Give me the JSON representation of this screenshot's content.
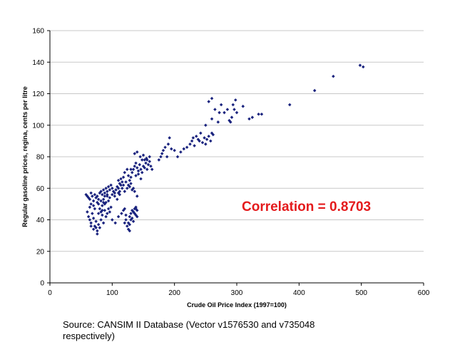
{
  "chart_data": {
    "type": "scatter",
    "title": "",
    "xlabel": "Crude Oil Price Index (1997=100)",
    "ylabel": "Regular gasoline prices, regina, cents per litre",
    "xlim": [
      0,
      600
    ],
    "ylim": [
      0,
      160
    ],
    "xticks": [
      0,
      100,
      200,
      300,
      400,
      500,
      600
    ],
    "yticks": [
      0,
      20,
      40,
      60,
      80,
      100,
      120,
      140,
      160
    ],
    "grid": "horizontal",
    "marker_color": "#1a237e",
    "annotation": "Correlation = 0.8703",
    "points": [
      [
        58,
        56
      ],
      [
        60,
        55
      ],
      [
        62,
        54
      ],
      [
        64,
        53
      ],
      [
        66,
        57
      ],
      [
        68,
        55
      ],
      [
        70,
        52
      ],
      [
        72,
        56
      ],
      [
        74,
        54
      ],
      [
        76,
        55
      ],
      [
        78,
        53
      ],
      [
        80,
        57
      ],
      [
        82,
        58
      ],
      [
        84,
        56
      ],
      [
        86,
        59
      ],
      [
        88,
        57
      ],
      [
        90,
        60
      ],
      [
        92,
        58
      ],
      [
        94,
        61
      ],
      [
        96,
        59
      ],
      [
        98,
        62
      ],
      [
        100,
        60
      ],
      [
        102,
        58
      ],
      [
        104,
        57
      ],
      [
        106,
        59
      ],
      [
        108,
        61
      ],
      [
        110,
        60
      ],
      [
        112,
        58
      ],
      [
        114,
        62
      ],
      [
        116,
        60
      ],
      [
        60,
        45
      ],
      [
        62,
        42
      ],
      [
        64,
        40
      ],
      [
        66,
        38
      ],
      [
        68,
        44
      ],
      [
        70,
        41
      ],
      [
        72,
        36
      ],
      [
        74,
        39
      ],
      [
        76,
        33
      ],
      [
        78,
        37
      ],
      [
        80,
        35
      ],
      [
        82,
        40
      ],
      [
        84,
        43
      ],
      [
        86,
        38
      ],
      [
        88,
        46
      ],
      [
        90,
        42
      ],
      [
        92,
        44
      ],
      [
        94,
        47
      ],
      [
        96,
        45
      ],
      [
        98,
        48
      ],
      [
        64,
        48
      ],
      [
        66,
        50
      ],
      [
        70,
        49
      ],
      [
        72,
        47
      ],
      [
        76,
        51
      ],
      [
        78,
        50
      ],
      [
        82,
        52
      ],
      [
        84,
        49
      ],
      [
        86,
        53
      ],
      [
        88,
        50
      ],
      [
        90,
        51
      ],
      [
        92,
        55
      ],
      [
        94,
        52
      ],
      [
        96,
        54
      ],
      [
        100,
        56
      ],
      [
        104,
        55
      ],
      [
        108,
        53
      ],
      [
        110,
        57
      ],
      [
        112,
        56
      ],
      [
        76,
        31
      ],
      [
        70,
        34
      ],
      [
        66,
        36
      ],
      [
        74,
        35
      ],
      [
        80,
        47
      ],
      [
        84,
        46
      ],
      [
        88,
        55
      ],
      [
        92,
        56
      ],
      [
        86,
        51
      ],
      [
        82,
        45
      ],
      [
        78,
        44
      ],
      [
        100,
        40
      ],
      [
        105,
        38
      ],
      [
        110,
        42
      ],
      [
        115,
        44
      ],
      [
        118,
        46
      ],
      [
        120,
        47
      ],
      [
        122,
        43
      ],
      [
        120,
        38
      ],
      [
        122,
        40
      ],
      [
        124,
        36
      ],
      [
        126,
        34
      ],
      [
        128,
        37
      ],
      [
        128,
        42
      ],
      [
        130,
        44
      ],
      [
        132,
        46
      ],
      [
        134,
        45
      ],
      [
        136,
        47
      ],
      [
        138,
        48
      ],
      [
        140,
        46
      ],
      [
        130,
        40
      ],
      [
        132,
        41
      ],
      [
        134,
        39
      ],
      [
        136,
        44
      ],
      [
        138,
        43
      ],
      [
        140,
        42
      ],
      [
        128,
        33
      ],
      [
        126,
        38
      ],
      [
        134,
        45
      ],
      [
        138,
        47
      ],
      [
        140,
        55
      ],
      [
        120,
        58
      ],
      [
        124,
        60
      ],
      [
        126,
        62
      ],
      [
        128,
        61
      ],
      [
        130,
        63
      ],
      [
        132,
        59
      ],
      [
        134,
        60
      ],
      [
        136,
        58
      ],
      [
        118,
        62
      ],
      [
        122,
        64
      ],
      [
        110,
        65
      ],
      [
        112,
        63
      ],
      [
        114,
        66
      ],
      [
        116,
        64
      ],
      [
        118,
        67
      ],
      [
        120,
        70
      ],
      [
        124,
        72
      ],
      [
        126,
        68
      ],
      [
        128,
        65
      ],
      [
        130,
        67
      ],
      [
        132,
        70
      ],
      [
        134,
        72
      ],
      [
        136,
        74
      ],
      [
        138,
        76
      ],
      [
        140,
        73
      ],
      [
        142,
        71
      ],
      [
        144,
        75
      ],
      [
        146,
        72
      ],
      [
        148,
        70
      ],
      [
        150,
        74
      ],
      [
        152,
        73
      ],
      [
        154,
        76
      ],
      [
        156,
        78
      ],
      [
        158,
        75
      ],
      [
        160,
        77
      ],
      [
        162,
        74
      ],
      [
        164,
        72
      ],
      [
        136,
        82
      ],
      [
        140,
        83
      ],
      [
        145,
        80
      ],
      [
        150,
        81
      ],
      [
        155,
        79
      ],
      [
        160,
        80
      ],
      [
        138,
        68
      ],
      [
        142,
        69
      ],
      [
        146,
        66
      ],
      [
        148,
        78
      ],
      [
        152,
        78
      ],
      [
        156,
        72
      ],
      [
        130,
        72
      ],
      [
        175,
        78
      ],
      [
        178,
        80
      ],
      [
        180,
        82
      ],
      [
        182,
        84
      ],
      [
        185,
        86
      ],
      [
        188,
        80
      ],
      [
        190,
        88
      ],
      [
        192,
        92
      ],
      [
        195,
        85
      ],
      [
        200,
        84
      ],
      [
        205,
        80
      ],
      [
        210,
        83
      ],
      [
        215,
        85
      ],
      [
        220,
        86
      ],
      [
        225,
        88
      ],
      [
        228,
        90
      ],
      [
        230,
        92
      ],
      [
        232,
        87
      ],
      [
        235,
        93
      ],
      [
        238,
        91
      ],
      [
        240,
        90
      ],
      [
        242,
        95
      ],
      [
        245,
        89
      ],
      [
        248,
        92
      ],
      [
        250,
        88
      ],
      [
        252,
        91
      ],
      [
        255,
        93
      ],
      [
        258,
        90
      ],
      [
        260,
        95
      ],
      [
        262,
        94
      ],
      [
        250,
        100
      ],
      [
        260,
        104
      ],
      [
        265,
        110
      ],
      [
        270,
        102
      ],
      [
        272,
        108
      ],
      [
        255,
        115
      ],
      [
        260,
        117
      ],
      [
        275,
        113
      ],
      [
        280,
        108
      ],
      [
        285,
        110
      ],
      [
        288,
        103
      ],
      [
        290,
        102
      ],
      [
        292,
        105
      ],
      [
        294,
        113
      ],
      [
        296,
        110
      ],
      [
        298,
        116
      ],
      [
        300,
        108
      ],
      [
        310,
        112
      ],
      [
        320,
        104
      ],
      [
        325,
        105
      ],
      [
        335,
        107
      ],
      [
        340,
        107
      ],
      [
        385,
        113
      ],
      [
        425,
        122
      ],
      [
        455,
        131
      ],
      [
        498,
        138
      ],
      [
        503,
        137
      ]
    ]
  }
}
